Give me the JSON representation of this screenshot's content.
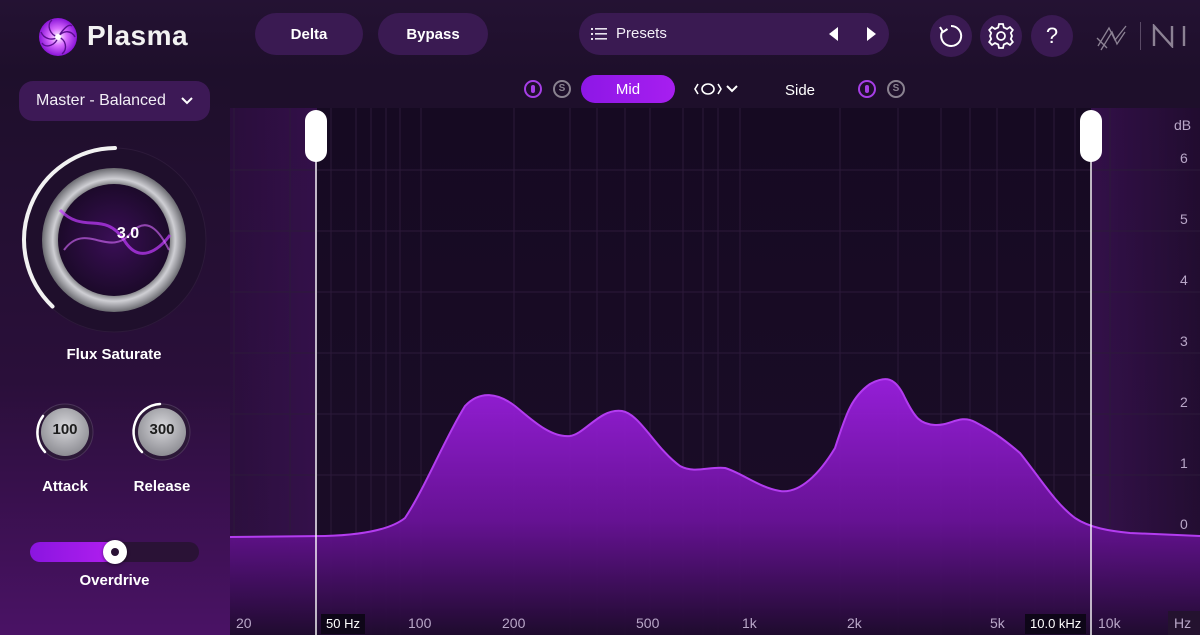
{
  "header": {
    "app_name": "Plasma",
    "delta_label": "Delta",
    "bypass_label": "Bypass",
    "presets_label": "Presets",
    "icons": [
      "plasma-logo-icon",
      "list-icon",
      "previous-arrow-icon",
      "next-arrow-icon",
      "history-icon",
      "gear-icon",
      "help-icon",
      "izotope-logo-icon",
      "ni-logo-icon"
    ],
    "help_glyph": "?"
  },
  "left_panel": {
    "mode_value": "Master - Balanced",
    "main_knob": {
      "value": "3.0",
      "label": "Flux Saturate"
    },
    "attack": {
      "value": "100",
      "label": "Attack"
    },
    "release": {
      "value": "300",
      "label": "Release"
    },
    "overdrive": {
      "label": "Overdrive",
      "fraction": 0.5
    }
  },
  "mid_side": {
    "mid_label": "Mid",
    "side_label": "Side",
    "solo_glyph": "S",
    "active": "Mid"
  },
  "spectrum": {
    "db_unit": "dB",
    "hz_unit": "Hz",
    "db_ticks": [
      "6",
      "5",
      "4",
      "3",
      "2",
      "1",
      "0"
    ],
    "freq_ticks": [
      "20",
      "100",
      "200",
      "500",
      "1k",
      "2k",
      "5k",
      "10k"
    ],
    "low_cut_readout": "50 Hz",
    "high_cut_readout": "10.0 kHz"
  },
  "colors": {
    "accent": "#a31ff0",
    "background": "#1a0d26",
    "panel": "#3a1a52",
    "curve": "#b33cf0"
  }
}
